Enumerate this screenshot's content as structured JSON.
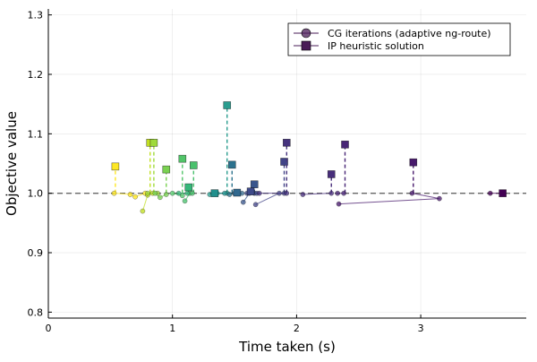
{
  "chart_data": {
    "type": "scatter",
    "title": "",
    "xlabel": "Time taken (s)",
    "ylabel": "Objective value",
    "xlim": [
      0,
      3.85
    ],
    "ylim": [
      0.79,
      1.31
    ],
    "xticks": [
      0,
      1,
      2,
      3
    ],
    "xtick_labels": [
      "0",
      "1",
      "2",
      "3"
    ],
    "yticks": [
      0.8,
      0.9,
      1.0,
      1.1,
      1.2,
      1.3
    ],
    "ytick_labels": [
      "0.8",
      "0.9",
      "1.0",
      "1.1",
      "1.2",
      "1.3"
    ],
    "grid": true,
    "reference_line_y": 1.0,
    "legend_position": "top-right",
    "legend": [
      {
        "label": "CG iterations (adaptive ng-route)",
        "marker": "circle",
        "color": "#4a1c57"
      },
      {
        "label": "IP heuristic solution",
        "marker": "square",
        "color": "#4a1c57"
      }
    ],
    "series": [
      {
        "color": "#fde725",
        "cg_points": [
          [
            0.53,
            1.0
          ],
          [
            0.66,
            0.998
          ],
          [
            0.7,
            0.994
          ],
          [
            0.78,
            1.0
          ]
        ],
        "ip": [
          0.54,
          1.045
        ]
      },
      {
        "color": "#c2df23",
        "cg_points": [
          [
            0.76,
            0.97
          ],
          [
            0.8,
            0.997
          ],
          [
            0.84,
            1.0
          ]
        ],
        "ip": [
          0.82,
          1.085
        ]
      },
      {
        "color": "#9fda3a",
        "cg_points": [
          [
            0.8,
            1.0
          ],
          [
            0.88,
            1.0
          ]
        ],
        "ip": [
          0.85,
          1.085
        ]
      },
      {
        "color": "#7ad151",
        "cg_points": [
          [
            0.86,
            1.0
          ],
          [
            0.9,
            0.993
          ],
          [
            0.95,
            0.998
          ]
        ],
        "ip": [
          0.95,
          1.04
        ]
      },
      {
        "color": "#52c569",
        "cg_points": [
          [
            1.0,
            1.0
          ],
          [
            1.08,
            0.996
          ]
        ],
        "ip": [
          1.08,
          1.058
        ]
      },
      {
        "color": "#4ac16d",
        "cg_points": [
          [
            1.1,
            0.987
          ],
          [
            1.14,
            1.0
          ],
          [
            1.16,
            1.0
          ]
        ],
        "ip": [
          1.17,
          1.047
        ]
      },
      {
        "color": "#35b779",
        "cg_points": [
          [
            1.05,
            1.0
          ],
          [
            1.12,
            1.0
          ]
        ],
        "ip": [
          1.13,
          1.01
        ]
      },
      {
        "color": "#2a9d8f",
        "cg_points": [
          [
            1.3,
            0.998
          ],
          [
            1.36,
            1.0
          ],
          [
            1.44,
            1.0
          ]
        ],
        "ip": [
          1.44,
          1.148
        ]
      },
      {
        "color": "#21908d",
        "cg_points": [
          [
            1.33,
            1.0
          ],
          [
            1.42,
            1.0
          ]
        ],
        "ip": [
          1.34,
          1.0
        ]
      },
      {
        "color": "#2c728e",
        "cg_points": [
          [
            1.46,
            0.998
          ],
          [
            1.52,
            1.0
          ]
        ],
        "ip": [
          1.48,
          1.048
        ]
      },
      {
        "color": "#31688e",
        "cg_points": [
          [
            1.5,
            1.0
          ],
          [
            1.56,
            1.0
          ]
        ],
        "ip": [
          1.52,
          1.001
        ]
      },
      {
        "color": "#39568c",
        "cg_points": [
          [
            1.57,
            0.985
          ],
          [
            1.62,
            1.0
          ],
          [
            1.66,
            1.0
          ]
        ],
        "ip": [
          1.66,
          1.015
        ]
      },
      {
        "color": "#3e4a89",
        "cg_points": [
          [
            1.6,
            1.0
          ],
          [
            1.68,
            1.0
          ]
        ],
        "ip": [
          1.63,
          1.003
        ]
      },
      {
        "color": "#414487",
        "cg_points": [
          [
            1.67,
            0.981
          ],
          [
            1.86,
            1.0
          ],
          [
            1.9,
            1.0
          ]
        ],
        "ip": [
          1.9,
          1.053
        ]
      },
      {
        "color": "#46337e",
        "cg_points": [
          [
            1.7,
            1.0
          ],
          [
            1.92,
            1.0
          ]
        ],
        "ip": [
          1.92,
          1.085
        ]
      },
      {
        "color": "#472d7b",
        "cg_points": [
          [
            2.05,
            0.998
          ],
          [
            2.28,
            1.0
          ]
        ],
        "ip": [
          2.28,
          1.032
        ]
      },
      {
        "color": "#482576",
        "cg_points": [
          [
            2.33,
            1.0
          ],
          [
            2.38,
            1.0
          ]
        ],
        "ip": [
          2.39,
          1.082
        ]
      },
      {
        "color": "#481a6c",
        "cg_points": [
          [
            2.34,
            0.982
          ],
          [
            3.15,
            0.991
          ],
          [
            2.93,
            1.0
          ]
        ],
        "ip": [
          2.94,
          1.052
        ]
      },
      {
        "color": "#440154",
        "cg_points": [
          [
            3.56,
            1.0
          ],
          [
            3.66,
            1.0
          ]
        ],
        "ip": [
          3.66,
          1.0
        ]
      }
    ]
  }
}
